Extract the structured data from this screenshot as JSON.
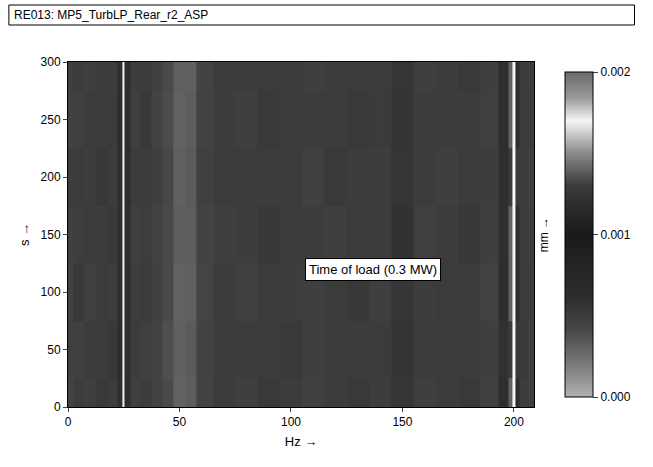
{
  "chart_data": {
    "type": "heatmap",
    "title": "RE013: MP5_TurbLP_Rear_r2_ASP",
    "xlabel": "Hz →",
    "ylabel": "s →",
    "x": [
      0,
      5,
      10,
      15,
      20,
      24,
      25,
      26,
      30,
      35,
      40,
      45,
      50,
      55,
      60,
      70,
      80,
      90,
      100,
      110,
      120,
      130,
      140,
      150,
      160,
      170,
      180,
      190,
      196,
      199,
      200,
      201,
      204,
      208
    ],
    "y": [
      0,
      50,
      100,
      150,
      200,
      250,
      300
    ],
    "z": [
      [
        0.00045,
        0.0005,
        0.00048,
        0.00052,
        0.0005,
        0.0006,
        0.0017,
        0.0006,
        0.00048,
        0.0005,
        0.00046,
        0.0004,
        0.0003,
        0.00032,
        0.00045,
        0.0005,
        0.00048,
        0.00052,
        0.0005,
        0.00047,
        0.0005,
        0.00052,
        0.00049,
        0.00055,
        0.00048,
        0.0005,
        0.00052,
        0.00047,
        0.0006,
        0.0014,
        0.0017,
        0.0012,
        0.0005,
        0.00048
      ],
      [
        0.00048,
        0.00047,
        0.0005,
        0.0005,
        0.00053,
        0.00062,
        0.0017,
        0.00058,
        0.0005,
        0.00048,
        0.00045,
        0.00038,
        0.00031,
        0.00033,
        0.00046,
        0.00049,
        0.0005,
        0.0005,
        0.00052,
        0.00048,
        0.00049,
        0.0005,
        0.00051,
        0.00056,
        0.0005,
        0.00049,
        0.0005,
        0.00048,
        0.00058,
        0.0013,
        0.0017,
        0.0013,
        0.00052,
        0.00047
      ],
      [
        0.00046,
        0.00052,
        0.00047,
        0.00051,
        0.00049,
        0.0006,
        0.0017,
        0.0006,
        0.00049,
        0.00051,
        0.00047,
        0.00041,
        0.0003,
        0.00031,
        0.00044,
        0.00051,
        0.00047,
        0.00051,
        0.00049,
        0.00048,
        0.00051,
        0.00053,
        0.00048,
        0.00054,
        0.00049,
        0.00051,
        0.00051,
        0.00046,
        0.0006,
        0.0014,
        0.0017,
        0.0012,
        0.00049,
        0.0005
      ],
      [
        0.00047,
        0.00049,
        0.00051,
        0.00049,
        0.00052,
        0.00061,
        0.0017,
        0.00059,
        0.00047,
        0.00049,
        0.00046,
        0.0004,
        0.00032,
        0.00032,
        0.00045,
        0.00048,
        0.00049,
        0.00053,
        0.00051,
        0.00049,
        0.00048,
        0.00051,
        0.0005,
        0.00057,
        0.00047,
        0.0005,
        0.00053,
        0.00048,
        0.00059,
        0.0014,
        0.0017,
        0.0012,
        0.0005,
        0.00049
      ],
      [
        0.00049,
        0.00051,
        0.00049,
        0.00053,
        0.0005,
        0.0006,
        0.0017,
        0.0006,
        0.0005,
        0.0005,
        0.00048,
        0.00042,
        0.00031,
        0.00033,
        0.00047,
        0.0005,
        0.00051,
        0.0005,
        0.0005,
        0.00047,
        0.00052,
        0.0005,
        0.00049,
        0.00055,
        0.0005,
        0.00048,
        0.00051,
        0.00049,
        0.0006,
        0.0013,
        0.0017,
        0.0013,
        0.00051,
        0.00048
      ],
      [
        0.00046,
        0.00048,
        0.0005,
        0.0005,
        0.00051,
        0.00062,
        0.0017,
        0.00061,
        0.00048,
        0.00052,
        0.00045,
        0.00039,
        0.0003,
        0.00032,
        0.00046,
        0.00049,
        0.00048,
        0.00052,
        0.00049,
        0.0005,
        0.0005,
        0.00052,
        0.00051,
        0.00056,
        0.00049,
        0.0005,
        0.0005,
        0.00047,
        0.00061,
        0.0014,
        0.0017,
        0.0012,
        0.0005,
        0.0005
      ],
      [
        0.00048,
        0.0005,
        0.00048,
        0.00051,
        0.0005,
        0.0006,
        0.0017,
        0.0006,
        0.00049,
        0.0005,
        0.00047,
        0.0004,
        0.00031,
        0.00031,
        0.00045,
        0.0005,
        0.0005,
        0.00051,
        0.0005,
        0.00048,
        0.00049,
        0.00051,
        0.0005,
        0.00055,
        0.00048,
        0.00049,
        0.00052,
        0.00048,
        0.0006,
        0.0014,
        0.0017,
        0.0012,
        0.00049,
        0.00049
      ]
    ],
    "xlim": [
      0,
      209
    ],
    "ylim": [
      0,
      300
    ],
    "xticks": [
      0,
      50,
      100,
      150,
      200
    ],
    "yticks": [
      0,
      50,
      100,
      150,
      200,
      250,
      300
    ],
    "zlabel": "mm →",
    "zlim": [
      0,
      0.002
    ],
    "zticks": [
      {
        "value": 0,
        "label": "0.000"
      },
      {
        "value": 0.001,
        "label": "0.001"
      },
      {
        "value": 0.002,
        "label": "0.002"
      }
    ],
    "annotations": [
      {
        "text": "Time of load (0.3 MW)",
        "x": 137,
        "y": 120
      }
    ]
  }
}
